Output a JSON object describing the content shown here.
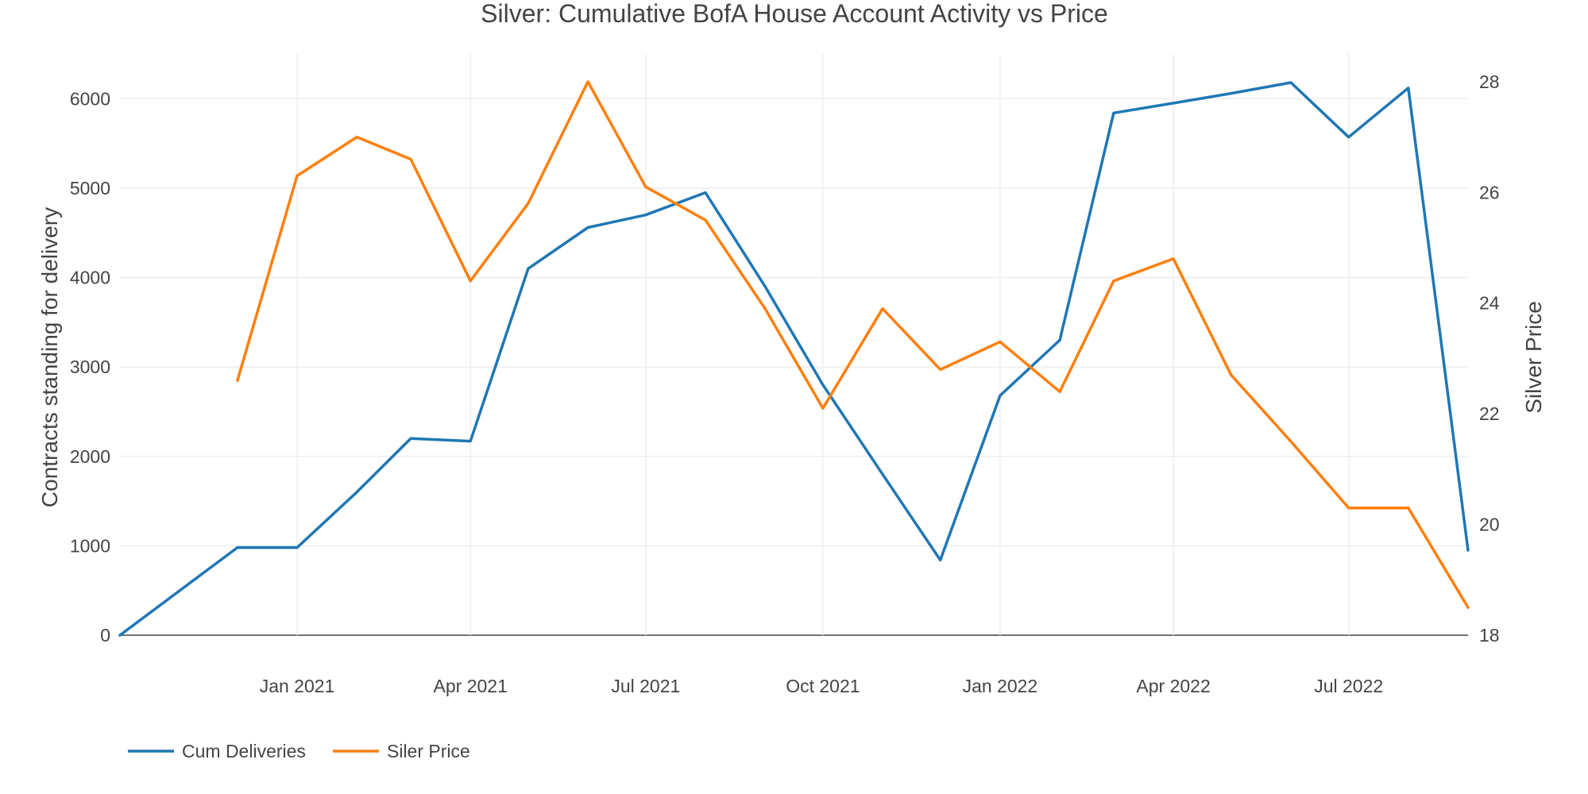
{
  "chart_data": {
    "type": "line",
    "title": "Silver: Cumulative BofA House Account Activity vs Price",
    "ylabel": "Contracts standing for delivery",
    "y2label": "Silver Price",
    "ylim": [
      0,
      6500
    ],
    "y2lim": [
      18,
      28.5
    ],
    "xlim": [
      "2020-10-01",
      "2022-09-01"
    ],
    "yticks": [
      0,
      1000,
      2000,
      3000,
      4000,
      5000,
      6000
    ],
    "y2ticks": [
      18,
      20,
      22,
      24,
      26,
      28
    ],
    "xticks": [
      {
        "date": "2021-01-01",
        "label": "Jan 2021"
      },
      {
        "date": "2021-04-01",
        "label": "Apr 2021"
      },
      {
        "date": "2021-07-01",
        "label": "Jul 2021"
      },
      {
        "date": "2021-10-01",
        "label": "Oct 2021"
      },
      {
        "date": "2022-01-01",
        "label": "Jan 2022"
      },
      {
        "date": "2022-04-01",
        "label": "Apr 2022"
      },
      {
        "date": "2022-07-01",
        "label": "Jul 2022"
      }
    ],
    "grid": true,
    "legend_position": "bottom-left",
    "series": [
      {
        "name": "Cum Deliveries",
        "axis": "y",
        "color": "#1f77b4",
        "x": [
          "2020-10-01",
          "2020-12-01",
          "2021-01-01",
          "2021-02-01",
          "2021-03-01",
          "2021-04-01",
          "2021-05-01",
          "2021-06-01",
          "2021-07-01",
          "2021-08-01",
          "2021-09-01",
          "2021-10-01",
          "2021-11-01",
          "2021-12-01",
          "2022-01-01",
          "2022-02-01",
          "2022-03-01",
          "2022-04-01",
          "2022-05-01",
          "2022-06-01",
          "2022-07-01",
          "2022-08-01",
          "2022-09-01"
        ],
        "values": [
          0,
          980,
          980,
          1600,
          2200,
          2170,
          4100,
          4560,
          4700,
          4950,
          3900,
          2800,
          1800,
          840,
          2680,
          3300,
          5840,
          5950,
          6060,
          6180,
          5570,
          6120,
          950
        ]
      },
      {
        "name": "Siler Price",
        "axis": "y2",
        "color": "#ff7f0e",
        "x": [
          "2020-12-01",
          "2021-01-01",
          "2021-02-01",
          "2021-03-01",
          "2021-04-01",
          "2021-05-01",
          "2021-06-01",
          "2021-07-01",
          "2021-08-01",
          "2021-09-01",
          "2021-10-01",
          "2021-11-01",
          "2021-12-01",
          "2022-01-01",
          "2022-02-01",
          "2022-03-01",
          "2022-04-01",
          "2022-05-01",
          "2022-06-01",
          "2022-07-01",
          "2022-08-01",
          "2022-09-01"
        ],
        "values": [
          22.6,
          26.3,
          27.0,
          26.6,
          24.4,
          25.8,
          28.0,
          26.1,
          25.5,
          23.9,
          22.1,
          23.9,
          22.8,
          23.3,
          22.4,
          24.4,
          24.8,
          22.7,
          21.5,
          20.3,
          20.3,
          18.5
        ]
      }
    ]
  }
}
